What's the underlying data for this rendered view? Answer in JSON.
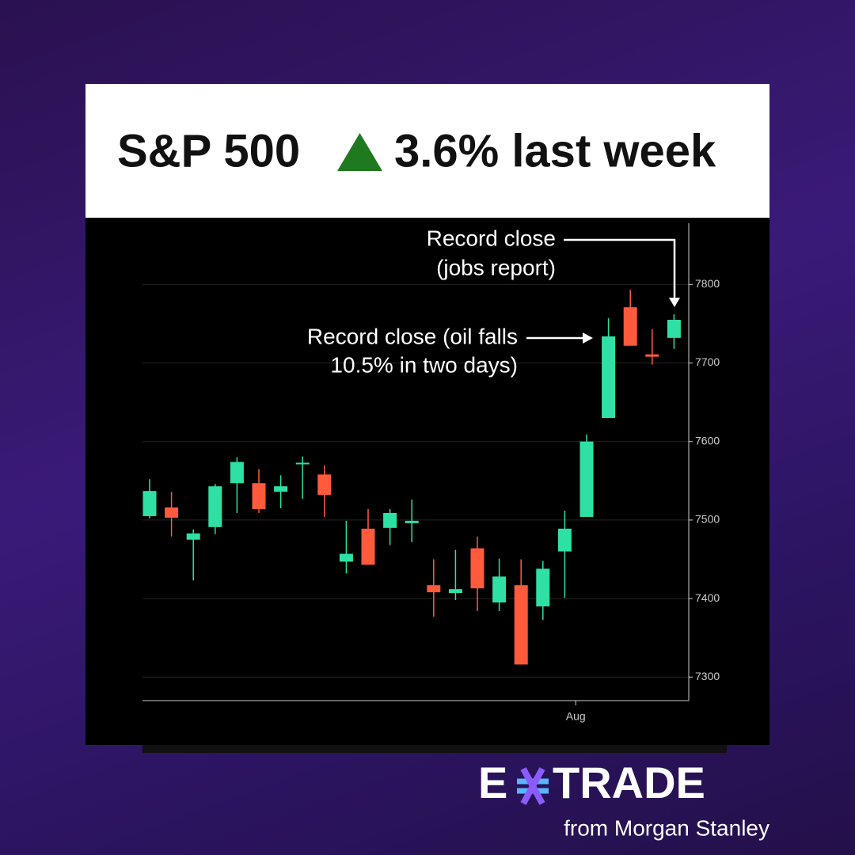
{
  "header": {
    "title_left": "S&P 500",
    "title_right": "3.6% last week"
  },
  "chart_data": {
    "type": "candlestick",
    "categories": [
      null,
      null,
      null,
      null,
      null,
      null,
      null,
      null,
      null,
      null,
      null,
      null,
      null,
      null,
      null,
      null,
      null,
      null,
      null,
      null,
      null,
      null,
      null,
      null,
      null
    ],
    "open": [
      7505,
      7516,
      7475,
      7491,
      7547,
      7547,
      7536,
      7571,
      7558,
      7447,
      7489,
      7490,
      7496,
      7417,
      7407,
      7464,
      7395,
      7417,
      7390,
      7460,
      7504,
      7630,
      7771,
      7711,
      7732
    ],
    "high": [
      7552,
      7536,
      7488,
      7546,
      7580,
      7565,
      7557,
      7581,
      7570,
      7499,
      7514,
      7514,
      7526,
      7450,
      7462,
      7479,
      7451,
      7450,
      7448,
      7512,
      7609,
      7757,
      7793,
      7743,
      7762
    ],
    "low": [
      7502,
      7479,
      7423,
      7482,
      7509,
      7509,
      7515,
      7527,
      7504,
      7432,
      7443,
      7468,
      7472,
      7377,
      7398,
      7384,
      7384,
      7316,
      7373,
      7401,
      7504,
      7630,
      7722,
      7698,
      7718
    ],
    "close": [
      7537,
      7503,
      7483,
      7543,
      7574,
      7514,
      7543,
      7573,
      7532,
      7457,
      7443,
      7509,
      7499,
      7408,
      7412,
      7413,
      7428,
      7316,
      7438,
      7489,
      7600,
      7734,
      7722,
      7708,
      7755
    ],
    "up_color": "#2fe0a4",
    "down_color": "#ff5a3c",
    "ylim": [
      7270,
      7878
    ],
    "yticks": [
      7300,
      7400,
      7500,
      7600,
      7700,
      7800
    ],
    "xticks": [
      {
        "value": 19.5,
        "label": "Aug"
      }
    ],
    "grid": true,
    "annotations": [
      "Record close",
      "(jobs report)",
      "Record close (oil falls",
      "10.5% in two days)"
    ]
  },
  "logo": {
    "left": "E",
    "right": "TRADE",
    "tagline": "from Morgan Stanley"
  }
}
